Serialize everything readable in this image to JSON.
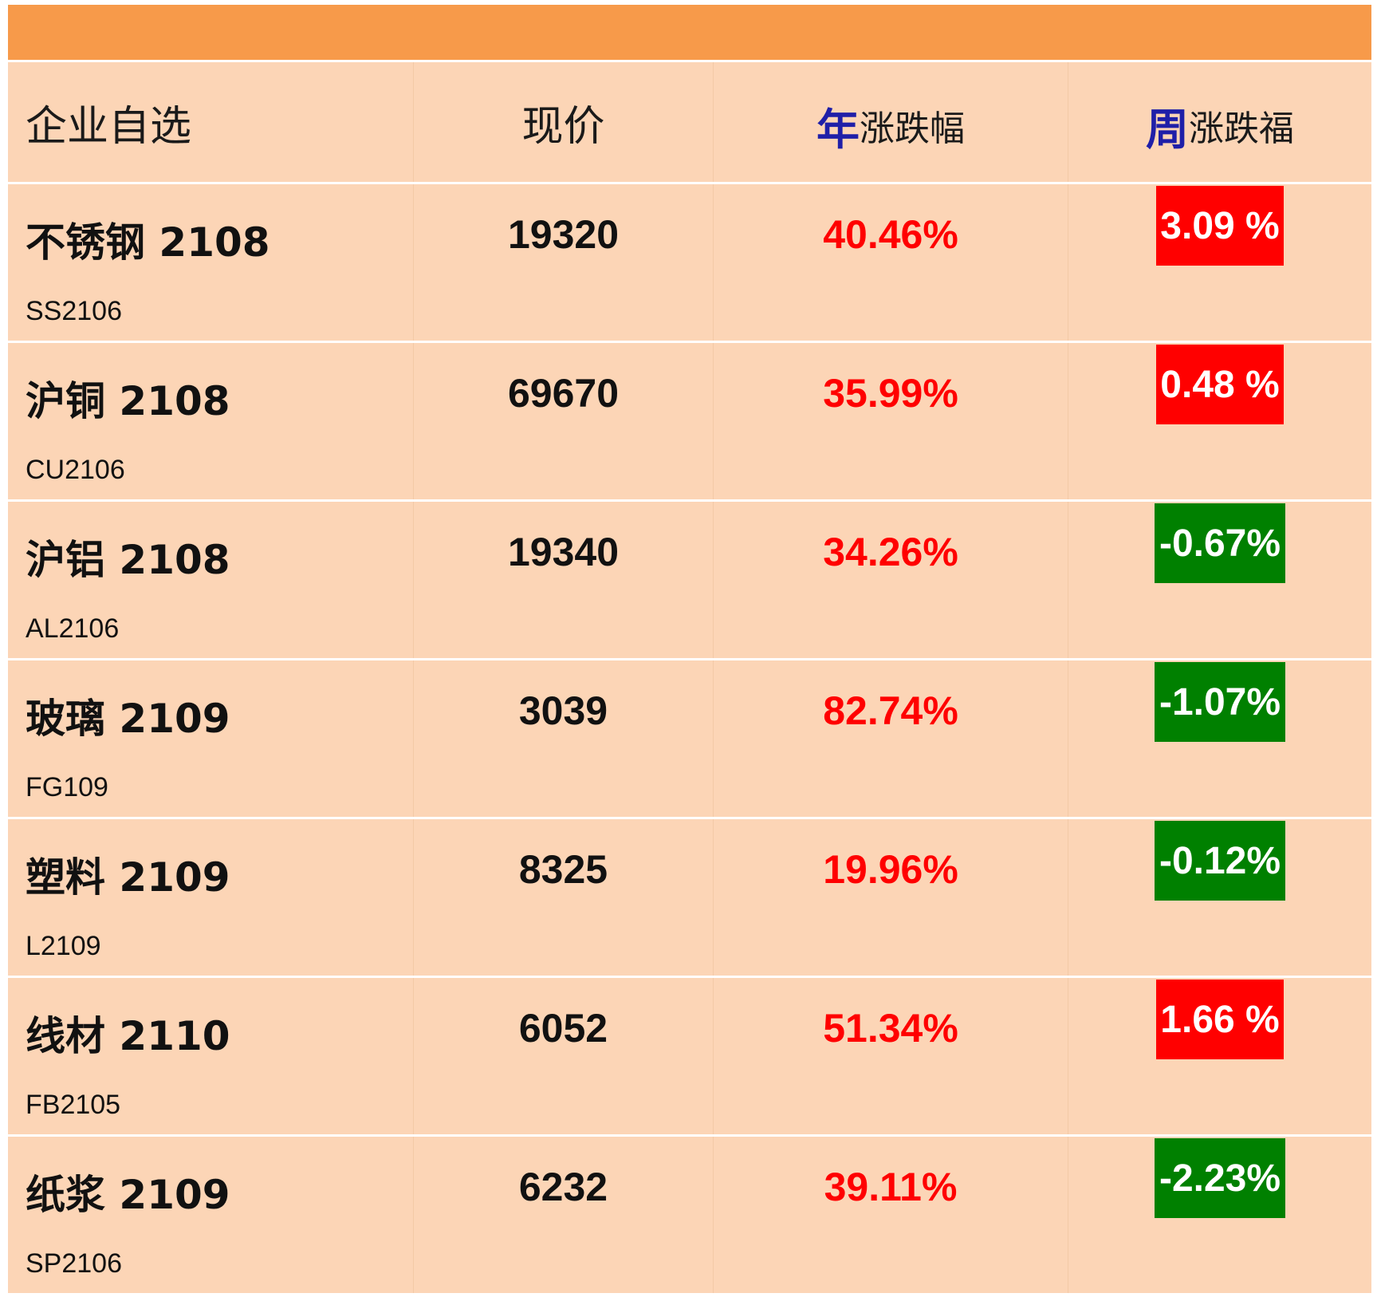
{
  "header": {
    "col_name": "企业自选",
    "col_price": "现价",
    "col_year_hl": "年",
    "col_year_rest": "涨跌幅",
    "col_week_hl": "周",
    "col_week_rest": "涨跌福"
  },
  "colors": {
    "up": "#ff0000",
    "down": "#008000",
    "header_accent": "#1f1fa8",
    "top_bar": "#f79a4a",
    "row_bg": "#fcd5b6"
  },
  "rows": [
    {
      "name": "不锈钢 2108",
      "code": "SS2106",
      "price": "19320",
      "year": "40.46%",
      "week": "3.09 %",
      "week_dir": "up"
    },
    {
      "name": "沪铜 2108",
      "code": "CU2106",
      "price": "69670",
      "year": "35.99%",
      "week": "0.48 %",
      "week_dir": "up"
    },
    {
      "name": "沪铝 2108",
      "code": "AL2106",
      "price": "19340",
      "year": "34.26%",
      "week": "-0.67%",
      "week_dir": "down"
    },
    {
      "name": "玻璃 2109",
      "code": "FG109",
      "price": "3039",
      "year": "82.74%",
      "week": "-1.07%",
      "week_dir": "down"
    },
    {
      "name": "塑料 2109",
      "code": "L2109",
      "price": "8325",
      "year": "19.96%",
      "week": "-0.12%",
      "week_dir": "down"
    },
    {
      "name": "线材 2110",
      "code": "FB2105",
      "price": "6052",
      "year": "51.34%",
      "week": "1.66 %",
      "week_dir": "up"
    },
    {
      "name": "纸浆 2109",
      "code": "SP2106",
      "price": "6232",
      "year": "39.11%",
      "week": "-2.23%",
      "week_dir": "down"
    }
  ]
}
